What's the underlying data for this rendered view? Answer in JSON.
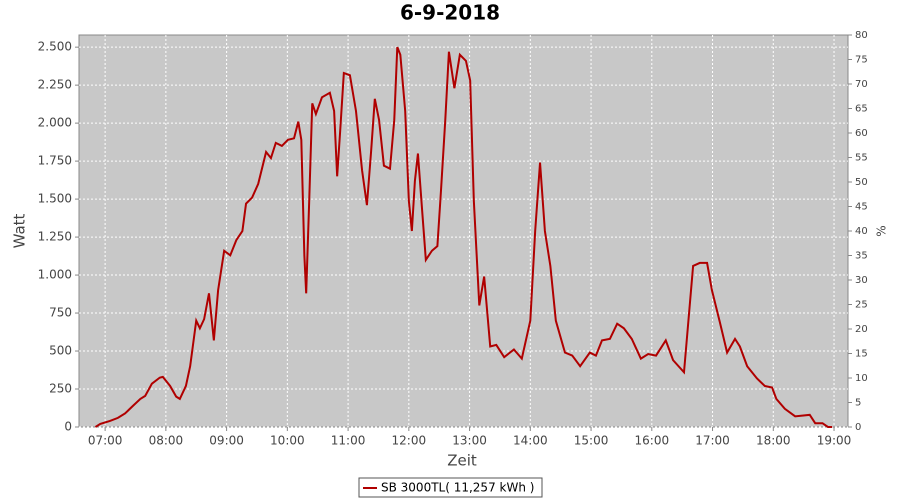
{
  "chart_data": {
    "type": "line",
    "title": "6-9-2018",
    "x_label": "Zeit",
    "y_label": "Watt",
    "y2_label": "%",
    "background": "#c8c8c8",
    "grid": true,
    "xlim": [
      6.57,
      19.23
    ],
    "xticks": [
      {
        "value": 7,
        "label": "07:00"
      },
      {
        "value": 8,
        "label": "08:00"
      },
      {
        "value": 9,
        "label": "09:00"
      },
      {
        "value": 10,
        "label": "10:00"
      },
      {
        "value": 11,
        "label": "11:00"
      },
      {
        "value": 12,
        "label": "12:00"
      },
      {
        "value": 13,
        "label": "13:00"
      },
      {
        "value": 14,
        "label": "14:00"
      },
      {
        "value": 15,
        "label": "15:00"
      },
      {
        "value": 16,
        "label": "16:00"
      },
      {
        "value": 17,
        "label": "17:00"
      },
      {
        "value": 18,
        "label": "18:00"
      },
      {
        "value": 19,
        "label": "19:00"
      }
    ],
    "ylim": [
      0,
      2580
    ],
    "yticks": [
      0,
      {
        "value": 250,
        "label": "250"
      },
      500,
      750,
      {
        "value": 1000,
        "label": "1.000"
      },
      {
        "value": 1250,
        "label": "1.250"
      },
      {
        "value": 1500,
        "label": "1.500"
      },
      {
        "value": 1750,
        "label": "1.750"
      },
      {
        "value": 2000,
        "label": "2.000"
      },
      {
        "value": 2250,
        "label": "2.250"
      },
      {
        "value": 2500,
        "label": "2.500"
      }
    ],
    "y2lim": [
      0,
      80
    ],
    "y2ticks": [
      0,
      5,
      10,
      15,
      20,
      25,
      30,
      35,
      40,
      45,
      50,
      55,
      60,
      65,
      70,
      75,
      80
    ],
    "x": [
      6.84,
      6.92,
      7.08,
      7.21,
      7.33,
      7.46,
      7.58,
      7.66,
      7.77,
      7.9,
      7.95,
      8.07,
      8.17,
      8.23,
      8.33,
      8.4,
      8.5,
      8.56,
      8.63,
      8.71,
      8.79,
      8.86,
      8.96,
      9.06,
      9.16,
      9.26,
      9.32,
      9.42,
      9.52,
      9.65,
      9.73,
      9.81,
      9.91,
      10.01,
      10.11,
      10.18,
      10.23,
      10.28,
      10.31,
      10.36,
      10.41,
      10.47,
      10.57,
      10.7,
      10.77,
      10.82,
      10.87,
      10.93,
      11.03,
      11.13,
      11.23,
      11.31,
      11.38,
      11.44,
      11.51,
      11.59,
      11.69,
      11.76,
      11.81,
      11.86,
      11.94,
      12.0,
      12.05,
      12.1,
      12.15,
      12.22,
      12.28,
      12.38,
      12.47,
      12.53,
      12.6,
      12.66,
      12.75,
      12.84,
      12.94,
      13.01,
      13.07,
      13.16,
      13.24,
      13.34,
      13.44,
      13.57,
      13.73,
      13.86,
      14.0,
      14.08,
      14.16,
      14.24,
      14.33,
      14.42,
      14.57,
      14.69,
      14.82,
      14.98,
      15.08,
      15.18,
      15.31,
      15.43,
      15.54,
      15.67,
      15.82,
      15.94,
      16.07,
      16.23,
      16.35,
      16.53,
      16.68,
      16.79,
      16.91,
      16.99,
      17.12,
      17.24,
      17.37,
      17.45,
      17.57,
      17.73,
      17.86,
      17.98,
      18.05,
      18.19,
      18.36,
      18.6,
      18.69,
      18.81,
      18.9,
      18.97
    ],
    "series": [
      {
        "name": "SB 3000TL( 11,257 kWh )",
        "color": "#b00000",
        "values": [
          0,
          20,
          40,
          60,
          90,
          140,
          185,
          205,
          285,
          325,
          330,
          270,
          200,
          185,
          270,
          400,
          700,
          650,
          710,
          880,
          570,
          900,
          1160,
          1130,
          1230,
          1290,
          1470,
          1510,
          1600,
          1810,
          1770,
          1870,
          1850,
          1890,
          1900,
          2010,
          1890,
          1130,
          880,
          1490,
          2130,
          2060,
          2170,
          2200,
          2080,
          1650,
          1950,
          2330,
          2315,
          2080,
          1690,
          1460,
          1820,
          2160,
          2020,
          1720,
          1700,
          2020,
          2500,
          2450,
          2080,
          1490,
          1290,
          1620,
          1800,
          1420,
          1100,
          1160,
          1190,
          1560,
          2020,
          2470,
          2230,
          2450,
          2410,
          2280,
          1490,
          800,
          990,
          530,
          540,
          460,
          510,
          450,
          700,
          1290,
          1740,
          1290,
          1060,
          700,
          490,
          470,
          400,
          490,
          470,
          570,
          580,
          680,
          650,
          580,
          450,
          480,
          470,
          570,
          440,
          360,
          1060,
          1080,
          1080,
          900,
          690,
          490,
          580,
          530,
          400,
          320,
          270,
          260,
          185,
          120,
          70,
          80,
          25,
          25,
          0,
          0
        ]
      }
    ]
  }
}
